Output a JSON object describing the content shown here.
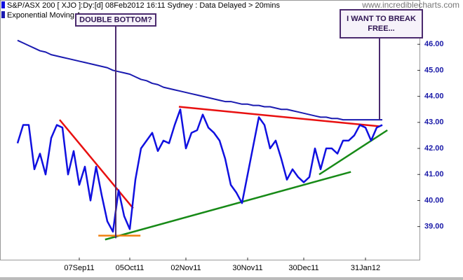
{
  "chart_data": {
    "type": "line",
    "title": "S&P/ASX 200 [ XJO ]:Dy:[d]  08Feb2012 16:11 Sydney : Data Delayed > 20mins",
    "watermark": "www.incrediblecharts.com",
    "categories": [
      null,
      null,
      null,
      null,
      null,
      null,
      null,
      null,
      null,
      null,
      null,
      "07Sep11",
      null,
      null,
      null,
      null,
      null,
      null,
      null,
      null,
      "05Oct11",
      null,
      null,
      null,
      null,
      null,
      null,
      null,
      null,
      null,
      "02Nov11",
      null,
      null,
      null,
      null,
      null,
      null,
      null,
      null,
      null,
      null,
      "30Nov11",
      null,
      null,
      null,
      null,
      null,
      null,
      null,
      null,
      null,
      "30Dec11",
      null,
      null,
      null,
      null,
      null,
      null,
      null,
      null,
      null,
      null,
      "31Jan12",
      null,
      null,
      null
    ],
    "series": [
      {
        "name": "S&P/ASX 200 [ XJO ]:Dy:[d]",
        "color": "#1010e0",
        "width": 2.5,
        "values": [
          42.2,
          42.9,
          42.9,
          41.2,
          41.8,
          41.0,
          42.4,
          42.9,
          42.8,
          41.0,
          41.9,
          40.6,
          41.3,
          40.0,
          41.3,
          40.2,
          39.2,
          38.8,
          40.4,
          39.4,
          38.9,
          40.8,
          42.0,
          42.3,
          42.6,
          41.9,
          42.3,
          42.2,
          42.9,
          43.5,
          42.0,
          42.6,
          42.7,
          43.3,
          42.8,
          42.6,
          42.3,
          41.6,
          40.6,
          40.3,
          39.9,
          41.0,
          42.1,
          43.2,
          42.9,
          42.0,
          42.3,
          41.6,
          40.8,
          41.2,
          40.9,
          40.7,
          40.9,
          42.0,
          41.2,
          42.0,
          42.0,
          41.8,
          42.3,
          42.3,
          42.5,
          42.9,
          42.8,
          42.3,
          42.8,
          42.9
        ]
      },
      {
        "name": "Exponential Moving Average",
        "color": "#1a1ab0",
        "width": 2,
        "values": [
          46.15,
          46.05,
          45.95,
          45.85,
          45.75,
          45.7,
          45.6,
          45.55,
          45.5,
          45.45,
          45.4,
          45.35,
          45.3,
          45.25,
          45.2,
          45.15,
          45.1,
          45.0,
          44.95,
          44.9,
          44.85,
          44.75,
          44.65,
          44.6,
          44.5,
          44.45,
          44.35,
          44.3,
          44.25,
          44.2,
          44.15,
          44.1,
          44.05,
          44.0,
          43.95,
          43.9,
          43.85,
          43.8,
          43.8,
          43.75,
          43.7,
          43.7,
          43.65,
          43.65,
          43.6,
          43.6,
          43.55,
          43.5,
          43.5,
          43.45,
          43.4,
          43.35,
          43.3,
          43.25,
          43.2,
          43.2,
          43.15,
          43.15,
          43.1,
          43.1,
          43.1,
          43.1,
          43.1,
          43.1,
          43.1,
          43.1
        ]
      }
    ],
    "trendlines": [
      {
        "color": "#e81010",
        "x": [
          7.5,
          20.6
        ],
        "values": [
          43.1,
          39.7
        ]
      },
      {
        "color": "#e81010",
        "x": [
          28.75,
          64.4
        ],
        "values": [
          43.6,
          42.85
        ]
      },
      {
        "color": "#178a17",
        "x": [
          15.6,
          59.4
        ],
        "values": [
          38.5,
          41.1
        ]
      },
      {
        "color": "#178a17",
        "x": [
          53.75,
          65.9
        ],
        "values": [
          41.0,
          42.7
        ]
      },
      {
        "color": "#f08010",
        "x": [
          14.4,
          21.9
        ],
        "values": [
          38.65,
          38.65
        ]
      }
    ],
    "annotations": [
      {
        "text": "DOUBLE BOTTOM?",
        "x": 17.5,
        "value": 38.55
      },
      {
        "text": "I WANT TO BREAK FREE...",
        "x": 64.5,
        "value": 43.1
      }
    ],
    "ylim": [
      37.7,
      47.7
    ],
    "yticks": [
      {
        "value": 39,
        "label": "39.00"
      },
      {
        "value": 40,
        "label": "40.00"
      },
      {
        "value": 41,
        "label": "41.00"
      },
      {
        "value": 42,
        "label": "42.00"
      },
      {
        "value": 43,
        "label": "43.00"
      },
      {
        "value": 44,
        "label": "44.00"
      },
      {
        "value": 45,
        "label": "45.00"
      },
      {
        "value": 46,
        "label": "46.00"
      }
    ],
    "grid": false
  }
}
